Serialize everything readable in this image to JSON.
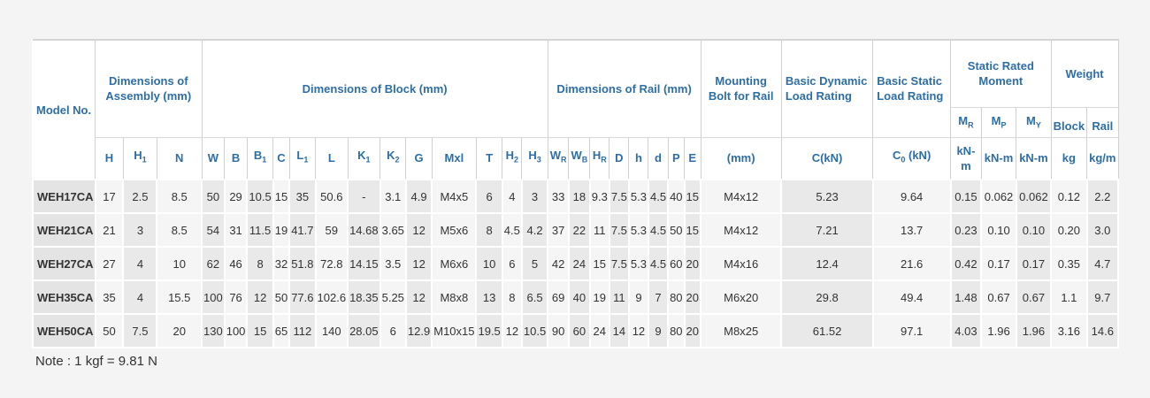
{
  "table": {
    "header": {
      "row1": [
        "Model No.",
        "Dimensions of Assembly (mm)",
        "Dimensions of Block (mm)",
        "Dimensions of Rail (mm)",
        "Mounting Bolt for Rail",
        "Basic Dynamic Load Rating",
        "Basic Static Load Rating",
        "Static Rated Moment",
        "Weight"
      ],
      "row2": [
        {
          "text": "M",
          "sub": "R"
        },
        {
          "text": "M",
          "sub": "P"
        },
        {
          "text": "M",
          "sub": "Y"
        },
        "Block",
        "Rail"
      ],
      "row3": [
        "H",
        {
          "text": "H",
          "sub": "1"
        },
        "N",
        "W",
        "B",
        {
          "text": "B",
          "sub": "1"
        },
        "C",
        {
          "text": "L",
          "sub": "1"
        },
        "L",
        {
          "text": "K",
          "sub": "1"
        },
        {
          "text": "K",
          "sub": "2"
        },
        "G",
        "Mxl",
        "T",
        {
          "text": "H",
          "sub": "2"
        },
        {
          "text": "H",
          "sub": "3"
        },
        {
          "text": "W",
          "sub": "R"
        },
        {
          "text": "W",
          "sub": "B"
        },
        {
          "text": "H",
          "sub": "R"
        },
        "D",
        "h",
        "d",
        "P",
        "E",
        "(mm)",
        "C(kN)",
        {
          "text": "C",
          "sub": "0",
          "suffix": " (kN)"
        },
        "kN-m",
        "kN-m",
        "kN-m",
        "kg",
        "kg/m"
      ]
    },
    "rows": [
      [
        "WEH17CA",
        "17",
        "2.5",
        "8.5",
        "50",
        "29",
        "10.5",
        "15",
        "35",
        "50.6",
        "-",
        "3.1",
        "4.9",
        "M4x5",
        "6",
        "4",
        "3",
        "33",
        "18",
        "9.3",
        "7.5",
        "5.3",
        "4.5",
        "40",
        "15",
        "M4x12",
        "5.23",
        "9.64",
        "0.15",
        "0.062",
        "0.062",
        "0.12",
        "2.2"
      ],
      [
        "WEH21CA",
        "21",
        "3",
        "8.5",
        "54",
        "31",
        "11.5",
        "19",
        "41.7",
        "59",
        "14.68",
        "3.65",
        "12",
        "M5x6",
        "8",
        "4.5",
        "4.2",
        "37",
        "22",
        "11",
        "7.5",
        "5.3",
        "4.5",
        "50",
        "15",
        "M4x12",
        "7.21",
        "13.7",
        "0.23",
        "0.10",
        "0.10",
        "0.20",
        "3.0"
      ],
      [
        "WEH27CA",
        "27",
        "4",
        "10",
        "62",
        "46",
        "8",
        "32",
        "51.8",
        "72.8",
        "14.15",
        "3.5",
        "12",
        "M6x6",
        "10",
        "6",
        "5",
        "42",
        "24",
        "15",
        "7.5",
        "5.3",
        "4.5",
        "60",
        "20",
        "M4x16",
        "12.4",
        "21.6",
        "0.42",
        "0.17",
        "0.17",
        "0.35",
        "4.7"
      ],
      [
        "WEH35CA",
        "35",
        "4",
        "15.5",
        "100",
        "76",
        "12",
        "50",
        "77.6",
        "102.6",
        "18.35",
        "5.25",
        "12",
        "M8x8",
        "13",
        "8",
        "6.5",
        "69",
        "40",
        "19",
        "11",
        "9",
        "7",
        "80",
        "20",
        "M6x20",
        "29.8",
        "49.4",
        "1.48",
        "0.67",
        "0.67",
        "1.1",
        "9.7"
      ],
      [
        "WEH50CA",
        "50",
        "7.5",
        "20",
        "130",
        "100",
        "15",
        "65",
        "112",
        "140",
        "28.05",
        "6",
        "12.9",
        "M10x15",
        "19.5",
        "12",
        "10.5",
        "90",
        "60",
        "24",
        "14",
        "12",
        "9",
        "80",
        "20",
        "M8x25",
        "61.52",
        "97.1",
        "4.03",
        "1.96",
        "1.96",
        "3.16",
        "14.6"
      ]
    ],
    "note": "Note : 1 kgf = 9.81 N"
  }
}
